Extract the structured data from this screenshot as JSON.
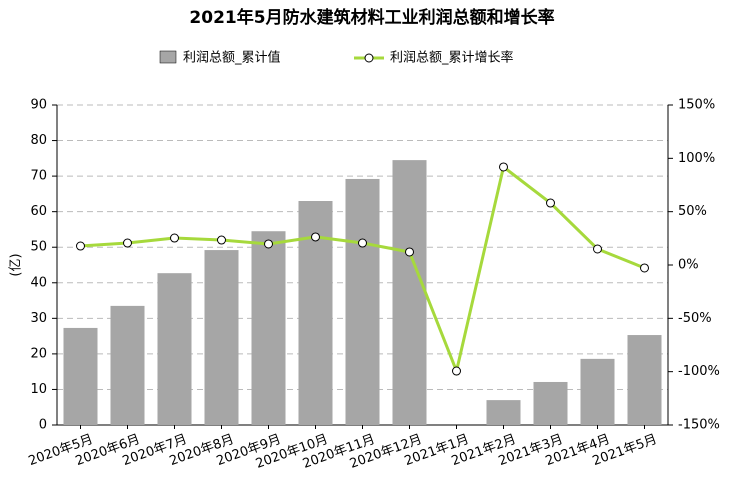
{
  "chart_data": {
    "type": "bar_line",
    "title": "2021年5月防水建筑材料工业利润总额和增长率",
    "y_label": "(亿)",
    "categories": [
      "2020年5月",
      "2020年6月",
      "2020年7月",
      "2020年8月",
      "2020年9月",
      "2020年10月",
      "2020年11月",
      "2020年12月",
      "2021年1月",
      "2021年2月",
      "2021年3月",
      "2021年4月",
      "2021年5月"
    ],
    "series": [
      {
        "name": "利润总额_累计值",
        "color": "#a6a6a6",
        "axis": "y",
        "values": [
          27.3,
          33.5,
          42.7,
          49.2,
          54.5,
          63.0,
          69.2,
          74.5,
          null,
          7.0,
          12.1,
          18.6,
          25.3
        ]
      },
      {
        "name": "利润总额_累计增长率",
        "color": "#a6d93c",
        "axis": "y2",
        "values": [
          17.8,
          20.6,
          25.3,
          23.4,
          19.7,
          26.3,
          20.6,
          12.2,
          -99.4,
          91.9,
          58.1,
          15.0,
          -2.8
        ]
      }
    ],
    "ylim": [
      0,
      90
    ],
    "yticks": [
      0,
      10,
      20,
      30,
      40,
      50,
      60,
      70,
      80,
      90
    ],
    "y2lim": [
      -150,
      150
    ],
    "y2ticks": [
      {
        "value": -150,
        "label": "-150%"
      },
      {
        "value": -100,
        "label": "-100%"
      },
      {
        "value": -50,
        "label": "-50%"
      },
      {
        "value": 0,
        "label": "0%"
      },
      {
        "value": 50,
        "label": "50%"
      },
      {
        "value": 100,
        "label": "100%"
      },
      {
        "value": 150,
        "label": "150%"
      }
    ],
    "grid": true,
    "legend": "top"
  }
}
